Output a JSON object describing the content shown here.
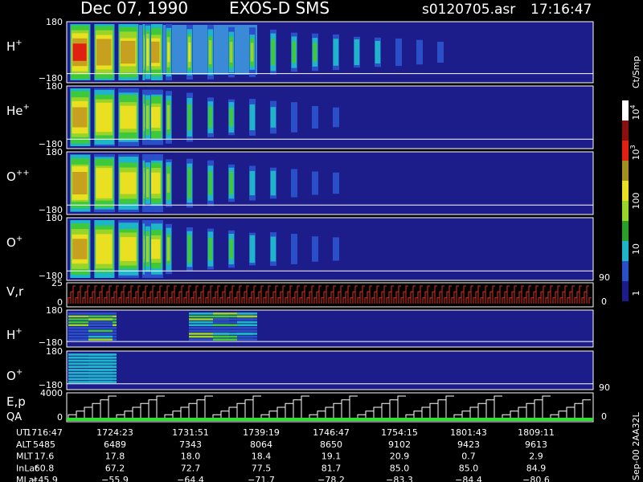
{
  "header": {
    "date": "Dec 07, 1990",
    "instrument": "EXOS-D SMS",
    "file": "s0120705.asr",
    "time": "17:16:47"
  },
  "panels": [
    {
      "label": "H",
      "sup": "+",
      "top": "180",
      "bottom": "−180"
    },
    {
      "label": "He",
      "sup": "+",
      "top": "180",
      "bottom": "−180"
    },
    {
      "label": "O",
      "sup": "++",
      "top": "180",
      "bottom": "−180"
    },
    {
      "label": "O",
      "sup": "+",
      "top": "180",
      "bottom": "−180"
    },
    {
      "label": "V,r",
      "top": "25",
      "bottom": "0",
      "right_top": "90",
      "right_bottom": "0"
    },
    {
      "label": "H",
      "sup": "+",
      "top": "180",
      "bottom": "−180"
    },
    {
      "label": "O",
      "sup": "+",
      "top": "180",
      "bottom": "−180"
    },
    {
      "label": "E,p",
      "label2": "QA",
      "top": "4000",
      "bottom": "0",
      "right_top": "90",
      "right_bottom": "0"
    }
  ],
  "colorbar": {
    "unit": "Ct/Smp",
    "ticks": [
      {
        "base": "10",
        "sup": "4"
      },
      {
        "base": "10",
        "sup": "3"
      },
      {
        "base": "100"
      },
      {
        "base": "10"
      },
      {
        "base": "1"
      }
    ]
  },
  "table": {
    "rows": [
      [
        "UT",
        "1716:47",
        "1724:23",
        "1731:51",
        "1739:19",
        "1746:47",
        "1754:15",
        "1801:43",
        "1809:11"
      ],
      [
        "ALT",
        "5485",
        "6489",
        "7343",
        "8064",
        "8650",
        "9102",
        "9423",
        "9613"
      ],
      [
        "MLT",
        "17.6",
        "17.8",
        "18.0",
        "18.4",
        "19.1",
        "20.9",
        "0.7",
        "2.9"
      ],
      [
        "InLat",
        "60.8",
        "67.2",
        "72.7",
        "77.5",
        "81.7",
        "85.0",
        "85.0",
        "84.9"
      ],
      [
        "MLat",
        "−45.9",
        "−55.9",
        "−64.4",
        "−71.7",
        "−78.2",
        "−83.3",
        "−84.4",
        "−80.6"
      ]
    ]
  },
  "footer": "Sep-00 2AA32L"
}
